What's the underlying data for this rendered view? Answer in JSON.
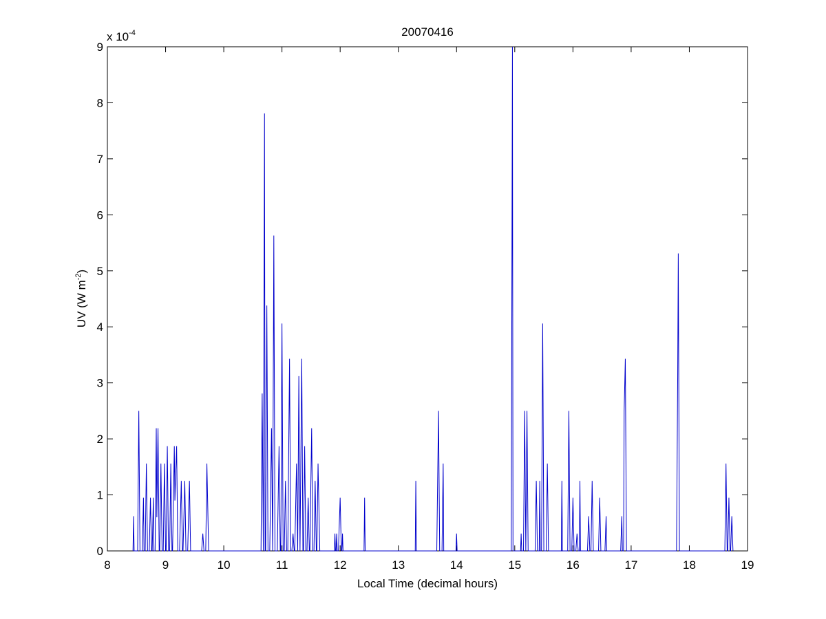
{
  "chart_data": {
    "type": "line",
    "title": "20070416",
    "xlabel": "Local Time (decimal hours)",
    "ylabel": "UV (W m",
    "ylabel_exponent": "-2",
    "ylabel_suffix": ")",
    "y_multiplier_base": "x 10",
    "y_multiplier_exponent": "-4",
    "xlim": [
      8,
      19
    ],
    "ylim": [
      0,
      9
    ],
    "x_ticks": [
      8,
      9,
      10,
      11,
      12,
      13,
      14,
      15,
      16,
      17,
      18,
      19
    ],
    "y_ticks": [
      0,
      1,
      2,
      3,
      4,
      5,
      6,
      7,
      8,
      9
    ],
    "grid": false,
    "line_color": "#0000cc",
    "series": [
      {
        "points": [
          [
            8.44,
            0
          ],
          [
            8.45,
            0.62
          ],
          [
            8.46,
            0
          ],
          [
            8.52,
            0
          ],
          [
            8.54,
            2.5
          ],
          [
            8.56,
            0
          ],
          [
            8.6,
            0
          ],
          [
            8.62,
            0.95
          ],
          [
            8.63,
            0
          ],
          [
            8.65,
            0
          ],
          [
            8.67,
            1.56
          ],
          [
            8.69,
            0
          ],
          [
            8.72,
            0
          ],
          [
            8.74,
            0.95
          ],
          [
            8.76,
            0
          ],
          [
            8.77,
            0
          ],
          [
            8.79,
            0.95
          ],
          [
            8.8,
            0
          ],
          [
            8.82,
            0
          ],
          [
            8.84,
            2.19
          ],
          [
            8.85,
            0.6
          ],
          [
            8.87,
            2.19
          ],
          [
            8.89,
            0
          ],
          [
            8.9,
            0
          ],
          [
            8.92,
            1.56
          ],
          [
            8.94,
            0
          ],
          [
            8.96,
            0
          ],
          [
            8.98,
            1.56
          ],
          [
            9.0,
            0
          ],
          [
            9.01,
            0
          ],
          [
            9.03,
            1.87
          ],
          [
            9.05,
            0
          ],
          [
            9.07,
            0
          ],
          [
            9.09,
            1.56
          ],
          [
            9.11,
            0
          ],
          [
            9.12,
            0
          ],
          [
            9.15,
            1.87
          ],
          [
            9.16,
            0.9
          ],
          [
            9.19,
            1.87
          ],
          [
            9.21,
            0
          ],
          [
            9.24,
            0
          ],
          [
            9.27,
            1.25
          ],
          [
            9.29,
            0
          ],
          [
            9.3,
            0
          ],
          [
            9.33,
            1.25
          ],
          [
            9.35,
            0
          ],
          [
            9.38,
            0
          ],
          [
            9.41,
            1.25
          ],
          [
            9.43,
            0
          ],
          [
            9.62,
            0
          ],
          [
            9.64,
            0.31
          ],
          [
            9.66,
            0
          ],
          [
            9.69,
            0
          ],
          [
            9.71,
            1.56
          ],
          [
            9.74,
            0
          ],
          [
            10.64,
            0
          ],
          [
            10.66,
            2.81
          ],
          [
            10.68,
            0
          ],
          [
            10.68,
            0
          ],
          [
            10.7,
            7.81
          ],
          [
            10.71,
            0
          ],
          [
            10.72,
            0
          ],
          [
            10.74,
            4.38
          ],
          [
            10.76,
            0
          ],
          [
            10.79,
            0
          ],
          [
            10.82,
            2.19
          ],
          [
            10.84,
            0
          ],
          [
            10.84,
            0
          ],
          [
            10.86,
            5.63
          ],
          [
            10.88,
            0
          ],
          [
            10.92,
            0
          ],
          [
            10.95,
            1.87
          ],
          [
            10.97,
            0
          ],
          [
            10.98,
            0
          ],
          [
            11.0,
            4.06
          ],
          [
            11.02,
            0
          ],
          [
            11.04,
            0
          ],
          [
            11.06,
            1.25
          ],
          [
            11.08,
            0
          ],
          [
            11.1,
            0
          ],
          [
            11.13,
            3.43
          ],
          [
            11.15,
            0
          ],
          [
            11.17,
            0
          ],
          [
            11.19,
            0.31
          ],
          [
            11.21,
            0
          ],
          [
            11.22,
            0
          ],
          [
            11.25,
            1.56
          ],
          [
            11.27,
            0
          ],
          [
            11.27,
            0
          ],
          [
            11.29,
            3.12
          ],
          [
            11.31,
            0
          ],
          [
            11.31,
            0
          ],
          [
            11.34,
            3.43
          ],
          [
            11.36,
            0
          ],
          [
            11.37,
            0
          ],
          [
            11.39,
            1.87
          ],
          [
            11.41,
            0
          ],
          [
            11.43,
            0
          ],
          [
            11.45,
            0.95
          ],
          [
            11.47,
            0
          ],
          [
            11.48,
            0
          ],
          [
            11.51,
            2.19
          ],
          [
            11.53,
            0
          ],
          [
            11.55,
            0
          ],
          [
            11.57,
            1.25
          ],
          [
            11.59,
            0
          ],
          [
            11.6,
            0
          ],
          [
            11.62,
            1.56
          ],
          [
            11.65,
            0
          ],
          [
            11.9,
            0
          ],
          [
            11.91,
            0.31
          ],
          [
            11.92,
            0
          ],
          [
            11.93,
            0
          ],
          [
            11.94,
            0.31
          ],
          [
            11.95,
            0
          ],
          [
            11.97,
            0
          ],
          [
            12.0,
            0.95
          ],
          [
            12.02,
            0
          ],
          [
            12.03,
            0
          ],
          [
            12.04,
            0.31
          ],
          [
            12.05,
            0
          ],
          [
            12.41,
            0
          ],
          [
            12.42,
            0.95
          ],
          [
            12.43,
            0
          ],
          [
            13.29,
            0
          ],
          [
            13.3,
            1.25
          ],
          [
            13.31,
            0
          ],
          [
            13.66,
            0
          ],
          [
            13.69,
            2.5
          ],
          [
            13.71,
            0
          ],
          [
            13.75,
            0
          ],
          [
            13.77,
            1.56
          ],
          [
            13.78,
            0
          ],
          [
            13.99,
            0
          ],
          [
            14.0,
            0.31
          ],
          [
            14.01,
            0
          ],
          [
            14.94,
            0
          ],
          [
            14.95,
            4.5
          ],
          [
            14.96,
            9.0
          ],
          [
            14.97,
            0
          ],
          [
            15.1,
            0
          ],
          [
            15.11,
            0.31
          ],
          [
            15.12,
            0
          ],
          [
            15.15,
            0
          ],
          [
            15.17,
            2.5
          ],
          [
            15.19,
            0
          ],
          [
            15.19,
            0
          ],
          [
            15.21,
            2.5
          ],
          [
            15.23,
            0
          ],
          [
            15.35,
            0
          ],
          [
            15.37,
            1.25
          ],
          [
            15.39,
            0
          ],
          [
            15.42,
            0
          ],
          [
            15.43,
            1.25
          ],
          [
            15.44,
            0
          ],
          [
            15.46,
            0
          ],
          [
            15.48,
            4.06
          ],
          [
            15.5,
            0
          ],
          [
            15.54,
            0
          ],
          [
            15.56,
            1.56
          ],
          [
            15.58,
            0
          ],
          [
            15.8,
            0
          ],
          [
            15.81,
            1.25
          ],
          [
            15.82,
            0
          ],
          [
            15.91,
            0
          ],
          [
            15.93,
            2.5
          ],
          [
            15.95,
            0
          ],
          [
            15.98,
            0
          ],
          [
            16.0,
            0.95
          ],
          [
            16.02,
            0
          ],
          [
            16.05,
            0
          ],
          [
            16.07,
            0.31
          ],
          [
            16.09,
            0
          ],
          [
            16.11,
            0
          ],
          [
            16.12,
            1.25
          ],
          [
            16.13,
            0
          ],
          [
            16.25,
            0
          ],
          [
            16.27,
            0.62
          ],
          [
            16.29,
            0
          ],
          [
            16.31,
            0
          ],
          [
            16.33,
            1.25
          ],
          [
            16.35,
            0
          ],
          [
            16.44,
            0
          ],
          [
            16.46,
            0.95
          ],
          [
            16.48,
            0
          ],
          [
            16.55,
            0
          ],
          [
            16.57,
            0.62
          ],
          [
            16.58,
            0
          ],
          [
            16.82,
            0
          ],
          [
            16.84,
            0.62
          ],
          [
            16.85,
            0
          ],
          [
            16.87,
            0
          ],
          [
            16.88,
            2.5
          ],
          [
            16.9,
            3.43
          ],
          [
            16.92,
            0
          ],
          [
            17.78,
            0
          ],
          [
            17.8,
            3.12
          ],
          [
            17.81,
            5.31
          ],
          [
            17.83,
            0
          ],
          [
            18.61,
            0
          ],
          [
            18.63,
            1.56
          ],
          [
            18.65,
            0
          ],
          [
            18.66,
            0
          ],
          [
            18.68,
            0.95
          ],
          [
            18.7,
            0
          ],
          [
            18.71,
            0
          ],
          [
            18.73,
            0.62
          ],
          [
            18.75,
            0
          ]
        ]
      }
    ]
  }
}
